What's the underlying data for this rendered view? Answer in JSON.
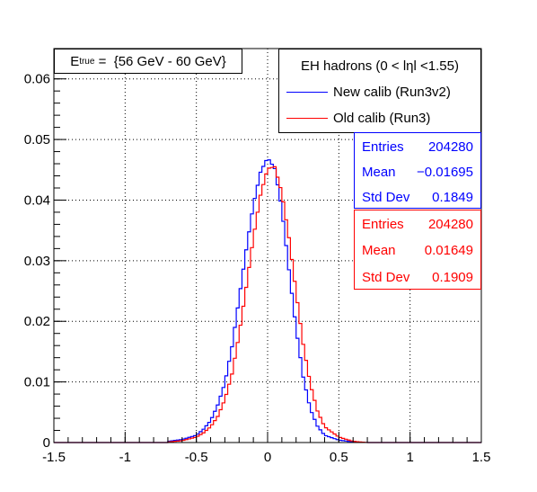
{
  "chart_data": {
    "type": "line",
    "xlim": [
      -1.5,
      1.5
    ],
    "ylim": [
      0,
      0.065
    ],
    "x_ticks": [
      "-1.5",
      "-1",
      "-0.5",
      "0",
      "0.5",
      "1",
      "1.5"
    ],
    "y_ticks": [
      "0",
      "0.01",
      "0.02",
      "0.03",
      "0.04",
      "0.05",
      "0.06"
    ],
    "grid": true,
    "series": [
      {
        "name": "New calib (Run3v2)",
        "color": "#0000ff",
        "x": [
          -0.7,
          -0.6,
          -0.5,
          -0.45,
          -0.4,
          -0.35,
          -0.3,
          -0.25,
          -0.2,
          -0.15,
          -0.1,
          -0.05,
          0.0,
          0.05,
          0.1,
          0.15,
          0.2,
          0.25,
          0.3,
          0.35,
          0.4,
          0.5,
          0.6,
          0.7
        ],
        "values": [
          0.0002,
          0.0005,
          0.0012,
          0.0022,
          0.0036,
          0.0062,
          0.0098,
          0.0158,
          0.0238,
          0.0318,
          0.0392,
          0.0446,
          0.047,
          0.0452,
          0.0385,
          0.0285,
          0.0188,
          0.0108,
          0.0055,
          0.0027,
          0.0012,
          0.0004,
          0.0001,
          0.0
        ]
      },
      {
        "name": "Old calib (Run3)",
        "color": "#ff0000",
        "x": [
          -0.7,
          -0.6,
          -0.5,
          -0.45,
          -0.4,
          -0.35,
          -0.3,
          -0.25,
          -0.2,
          -0.15,
          -0.1,
          -0.05,
          0.0,
          0.05,
          0.1,
          0.15,
          0.2,
          0.25,
          0.3,
          0.35,
          0.4,
          0.5,
          0.6,
          0.7
        ],
        "values": [
          0.0001,
          0.0003,
          0.0009,
          0.0016,
          0.0026,
          0.0043,
          0.0071,
          0.0113,
          0.0178,
          0.0256,
          0.0338,
          0.0408,
          0.0452,
          0.0455,
          0.0412,
          0.0338,
          0.0248,
          0.0162,
          0.0096,
          0.0052,
          0.0026,
          0.0009,
          0.0002,
          0.0
        ]
      }
    ]
  },
  "energy_box": {
    "e_symbol": "E",
    "e_subscript": "true",
    "e_range": " =  {56 GeV - 60 GeV}"
  },
  "legend": {
    "header": "EH hadrons (0 < lηl <1.55)",
    "new_label": "New calib (Run3v2)",
    "old_label": "Old calib (Run3)"
  },
  "stats_new": {
    "entries_label": "Entries",
    "entries": "204280",
    "mean_label": "Mean",
    "mean": "−0.01695",
    "std_label": "Std Dev",
    "std": "0.1849",
    "color": "#0000ff"
  },
  "stats_old": {
    "entries_label": "Entries",
    "entries": "204280",
    "mean_label": "Mean",
    "mean": "0.01649",
    "std_label": "Std Dev",
    "std": "0.1909",
    "color": "#ff0000"
  }
}
